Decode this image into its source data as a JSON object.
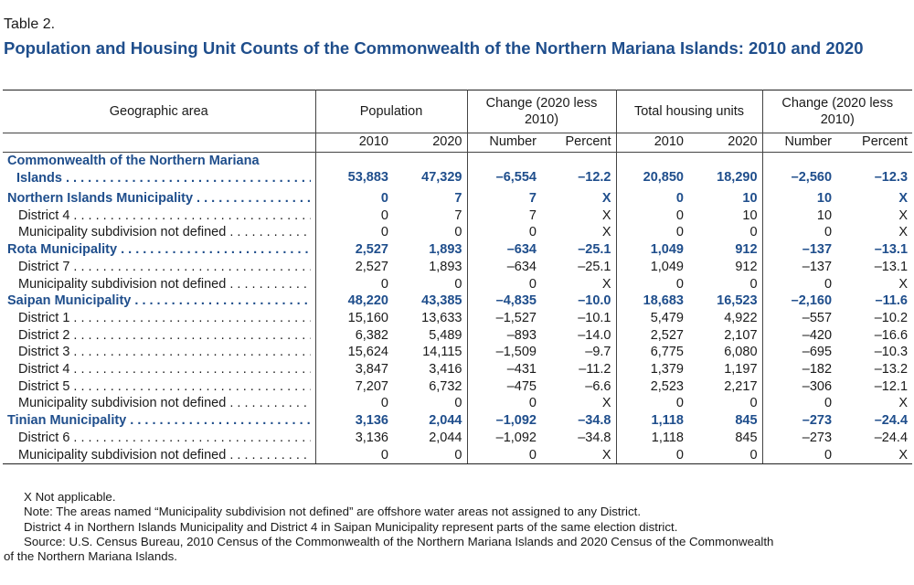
{
  "table_label": "Table 2.",
  "title": "Population and Housing Unit Counts of the Commonwealth of the Northern Mariana Islands: 2010 and 2020",
  "headers": {
    "geo": "Geographic area",
    "population": "Population",
    "change_pop": "Change (2020 less 2010)",
    "housing": "Total housing units",
    "change_hu": "Change (2020 less 2010)",
    "y2010": "2010",
    "y2020": "2020",
    "number": "Number",
    "percent": "Percent"
  },
  "rows": [
    {
      "name_line1": "Commonwealth of the Northern Mariana",
      "name_line2": "Islands",
      "bold": true,
      "values": [
        "53,883",
        "47,329",
        "–6,554",
        "–12.2",
        "20,850",
        "18,290",
        "–2,560",
        "–12.3"
      ]
    },
    {
      "name": "Northern Islands Municipality",
      "bold": true,
      "values": [
        "0",
        "7",
        "7",
        "X",
        "0",
        "10",
        "10",
        "X"
      ]
    },
    {
      "name": "District 4",
      "bold": false,
      "values": [
        "0",
        "7",
        "7",
        "X",
        "0",
        "10",
        "10",
        "X"
      ]
    },
    {
      "name": "Municipality subdivision not defined",
      "bold": false,
      "values": [
        "0",
        "0",
        "0",
        "X",
        "0",
        "0",
        "0",
        "X"
      ]
    },
    {
      "name": "Rota Municipality",
      "bold": true,
      "values": [
        "2,527",
        "1,893",
        "–634",
        "–25.1",
        "1,049",
        "912",
        "–137",
        "–13.1"
      ]
    },
    {
      "name": "District 7",
      "bold": false,
      "values": [
        "2,527",
        "1,893",
        "–634",
        "–25.1",
        "1,049",
        "912",
        "–137",
        "–13.1"
      ]
    },
    {
      "name": "Municipality subdivision not defined",
      "bold": false,
      "values": [
        "0",
        "0",
        "0",
        "X",
        "0",
        "0",
        "0",
        "X"
      ]
    },
    {
      "name": "Saipan Municipality",
      "bold": true,
      "values": [
        "48,220",
        "43,385",
        "–4,835",
        "–10.0",
        "18,683",
        "16,523",
        "–2,160",
        "–11.6"
      ]
    },
    {
      "name": "District 1",
      "bold": false,
      "values": [
        "15,160",
        "13,633",
        "–1,527",
        "–10.1",
        "5,479",
        "4,922",
        "–557",
        "–10.2"
      ]
    },
    {
      "name": "District 2",
      "bold": false,
      "values": [
        "6,382",
        "5,489",
        "–893",
        "–14.0",
        "2,527",
        "2,107",
        "–420",
        "–16.6"
      ]
    },
    {
      "name": "District 3",
      "bold": false,
      "values": [
        "15,624",
        "14,115",
        "–1,509",
        "–9.7",
        "6,775",
        "6,080",
        "–695",
        "–10.3"
      ]
    },
    {
      "name": "District 4",
      "bold": false,
      "values": [
        "3,847",
        "3,416",
        "–431",
        "–11.2",
        "1,379",
        "1,197",
        "–182",
        "–13.2"
      ]
    },
    {
      "name": "District 5",
      "bold": false,
      "values": [
        "7,207",
        "6,732",
        "–475",
        "–6.6",
        "2,523",
        "2,217",
        "–306",
        "–12.1"
      ]
    },
    {
      "name": "Municipality subdivision not defined",
      "bold": false,
      "values": [
        "0",
        "0",
        "0",
        "X",
        "0",
        "0",
        "0",
        "X"
      ]
    },
    {
      "name": "Tinian Municipality",
      "bold": true,
      "values": [
        "3,136",
        "2,044",
        "–1,092",
        "–34.8",
        "1,118",
        "845",
        "–273",
        "–24.4"
      ]
    },
    {
      "name": "District 6",
      "bold": false,
      "values": [
        "3,136",
        "2,044",
        "–1,092",
        "–34.8",
        "1,118",
        "845",
        "–273",
        "–24.4"
      ]
    },
    {
      "name": "Municipality subdivision not defined",
      "bold": false,
      "values": [
        "0",
        "0",
        "0",
        "X",
        "0",
        "0",
        "0",
        "X"
      ]
    }
  ],
  "notes": [
    "X Not applicable.",
    "Note: The areas named “Municipality subdivision not defined” are offshore water areas not assigned to any District.",
    "District 4 in Northern Islands Municipality and District 4 in Saipan Municipality represent parts of the same election district.",
    "Source: U.S. Census Bureau, 2010 Census of the Commonwealth of the Northern Mariana Islands and 2020 Census of the Commonwealth",
    "of the Northern Mariana Islands."
  ],
  "colors": {
    "title": "#1f4e8c",
    "bold_rows": "#1f4e8c"
  }
}
